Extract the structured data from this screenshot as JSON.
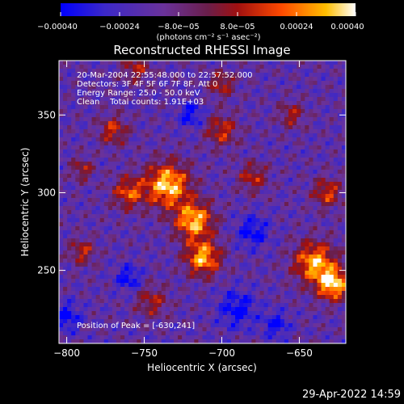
{
  "chart_data": {
    "type": "heatmap",
    "title": "Reconstructed RHESSI Image",
    "xlabel": "Heliocentric X (arcsec)",
    "ylabel": "Heliocentric Y (arcsec)",
    "xlim": [
      -805,
      -620
    ],
    "ylim": [
      203,
      385
    ],
    "x_ticks": [
      -800,
      -750,
      -700,
      -650
    ],
    "x_tick_labels": [
      "−800",
      "−750",
      "−700",
      "−650"
    ],
    "y_ticks": [
      250,
      300,
      350
    ],
    "y_tick_labels": [
      "250",
      "300",
      "350"
    ],
    "colorbar": {
      "min": -0.0004,
      "max": 0.0004,
      "ticks": [
        -0.0004,
        -0.00024,
        -8e-05,
        8e-05,
        0.00024,
        0.0004
      ],
      "tick_labels": [
        "−0.00040",
        "−0.00024",
        "−8.0e−05",
        "8.0e−05",
        "0.00024",
        "0.00040"
      ],
      "unit_label": "(photons cm⁻² s⁻¹ asec⁻²)",
      "colors": [
        "#0000ff",
        "#6a32b4",
        "#7a2a7a",
        "#b21515",
        "#ff4a00",
        "#ffb400",
        "#ffffff"
      ]
    },
    "annotations": [
      "20-Mar-2004 22:55:48.000 to 22:57:52.000",
      "Detectors: 3F 4F 5F 6F 7F 8F, Att 0",
      "Energy Range: 25.0 - 50.0 keV",
      "Clean    Total counts: 1.91E+03",
      "Position of Peak = [-630,241]"
    ],
    "grid": false,
    "footer_date": "29-Apr-2022 14:59"
  }
}
